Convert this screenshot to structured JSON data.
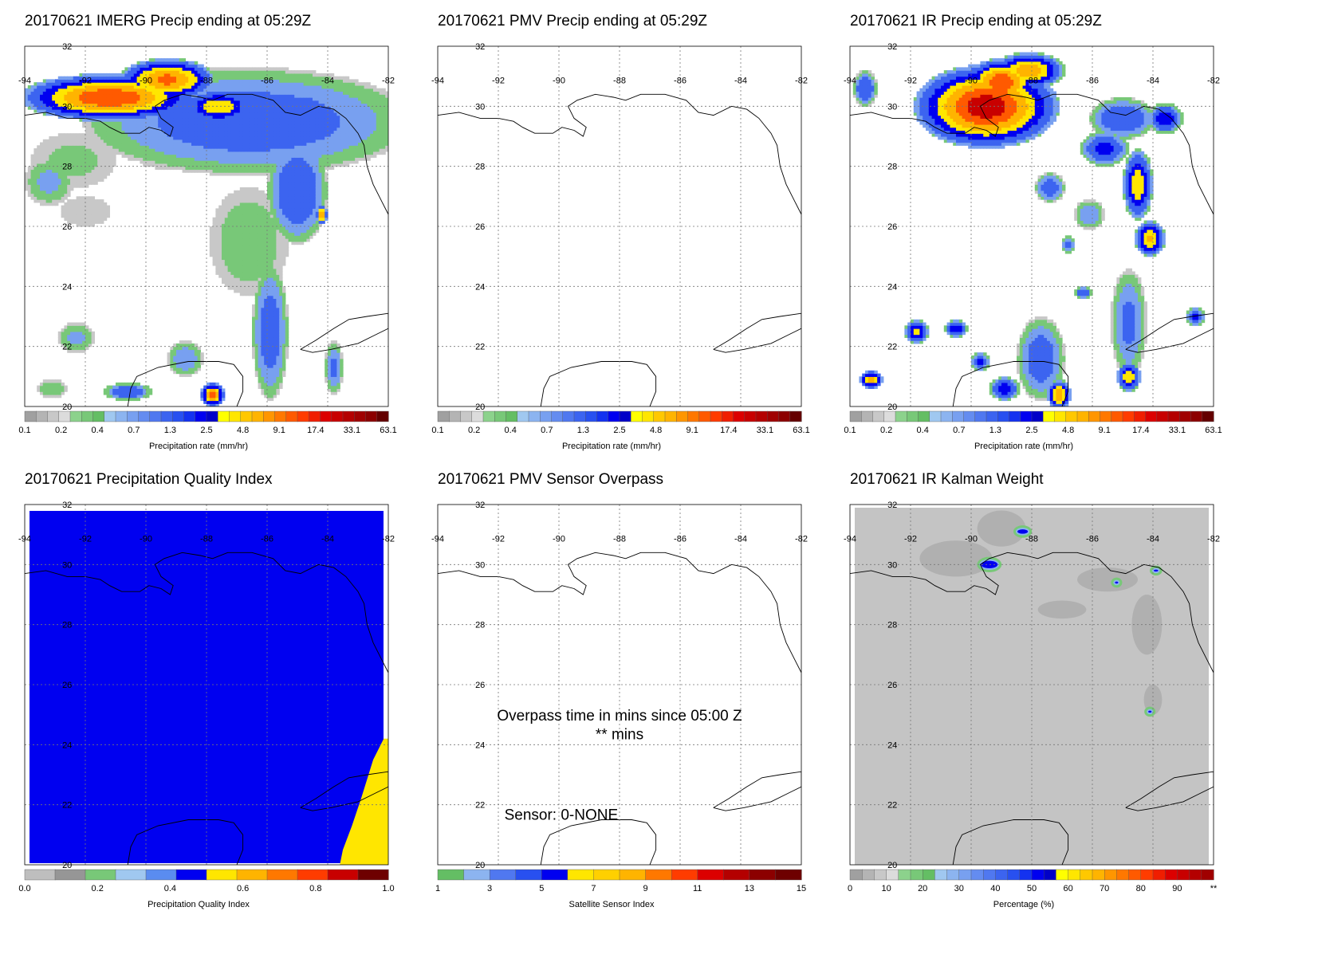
{
  "colors": {
    "precip_scale": [
      "#a0a0a0",
      "#b4b4b4",
      "#c8c8c8",
      "#dcdcdc",
      "#8cd28c",
      "#78c878",
      "#64be64",
      "#a0c8f0",
      "#8cb4f0",
      "#78a0f0",
      "#648cf0",
      "#5078f0",
      "#3c64f0",
      "#2850f0",
      "#1432f0",
      "#0000f0",
      "#0000c8",
      "#ffff00",
      "#ffe600",
      "#ffc800",
      "#ffb400",
      "#ff9600",
      "#ff7800",
      "#ff5a00",
      "#ff3c00",
      "#f01e00",
      "#dc0000",
      "#c80000",
      "#b40000",
      "#a00000",
      "#8c0000",
      "#640000"
    ],
    "quality_scale": [
      "#bebebe",
      "#969696",
      "#78c878",
      "#a0c8f0",
      "#5a8cf0",
      "#0000f0",
      "#ffe600",
      "#ffb400",
      "#ff7800",
      "#ff3c00",
      "#c80000",
      "#6e0000"
    ],
    "sensor_scale": [
      "#64be64",
      "#8cb4f0",
      "#5078f0",
      "#2850f0",
      "#0000f0",
      "#ffe600",
      "#ffd000",
      "#ffb400",
      "#ff7800",
      "#ff3c00",
      "#dc0000",
      "#b40000",
      "#8c0000",
      "#6e0000"
    ],
    "percent_scale": [
      "#a0a0a0",
      "#b4b4b4",
      "#c8c8c8",
      "#dcdcdc",
      "#8cd28c",
      "#78c878",
      "#64be64",
      "#a0c8f0",
      "#8cb4f0",
      "#78a0f0",
      "#648cf0",
      "#5078f0",
      "#3c64f0",
      "#2850f0",
      "#1432f0",
      "#0000f0",
      "#0000c8",
      "#ffff00",
      "#ffe600",
      "#ffc800",
      "#ffb400",
      "#ff9600",
      "#ff7800",
      "#ff5a00",
      "#ff3c00",
      "#f01e00",
      "#dc0000",
      "#c80000",
      "#b40000",
      "#a00000"
    ]
  },
  "map": {
    "lon_labels": [
      "-94",
      "-92",
      "-90",
      "-88",
      "-86",
      "-84",
      "-82"
    ],
    "lat_labels": [
      "32",
      "30",
      "28",
      "26",
      "24",
      "22",
      "20"
    ]
  },
  "panels": [
    {
      "title": "20170621 IMERG Precip ending at 05:29Z",
      "field": "imerg",
      "colorbar": "precip",
      "cb_labels": [
        "0.1",
        "0.2",
        "0.4",
        "0.7",
        "1.3",
        "2.5",
        "4.8",
        "9.1",
        "17.4",
        "33.1",
        "63.1"
      ],
      "cb_title": "Precipitation rate (mm/hr)"
    },
    {
      "title": "20170621 PMV Precip ending at 05:29Z",
      "field": "empty",
      "colorbar": "precip",
      "cb_labels": [
        "0.1",
        "0.2",
        "0.4",
        "0.7",
        "1.3",
        "2.5",
        "4.8",
        "9.1",
        "17.4",
        "33.1",
        "63.1"
      ],
      "cb_title": "Precipitation rate (mm/hr)"
    },
    {
      "title": "20170621 IR Precip ending at 05:29Z",
      "field": "ir",
      "colorbar": "precip",
      "cb_labels": [
        "0.1",
        "0.2",
        "0.4",
        "0.7",
        "1.3",
        "2.5",
        "4.8",
        "9.1",
        "17.4",
        "33.1",
        "63.1"
      ],
      "cb_title": "Precipitation rate (mm/hr)"
    },
    {
      "title": "20170621 Precipitation Quality Index",
      "field": "quality",
      "colorbar": "quality",
      "cb_labels": [
        "0.0",
        "0.2",
        "0.4",
        "0.6",
        "0.8",
        "1.0"
      ],
      "cb_title": "Precipitation Quality Index"
    },
    {
      "title": "20170621 PMV Sensor Overpass",
      "field": "overpass",
      "colorbar": "sensor",
      "cb_labels": [
        "1",
        "3",
        "5",
        "7",
        "9",
        "11",
        "13",
        "15"
      ],
      "cb_title": "Satellite Sensor Index",
      "notes": {
        "line1": "Overpass time in mins since 05:00 Z",
        "line2": "** mins",
        "line3": "Sensor:   0-NONE"
      }
    },
    {
      "title": "20170621 IR Kalman Weight",
      "field": "kalman",
      "colorbar": "percent",
      "cb_labels": [
        "0",
        "10",
        "20",
        "30",
        "40",
        "50",
        "60",
        "70",
        "80",
        "90",
        "**"
      ],
      "cb_title": "Percentage (%)"
    }
  ]
}
